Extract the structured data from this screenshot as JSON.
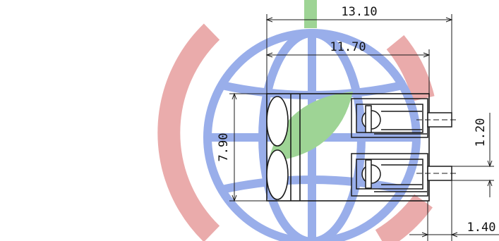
{
  "colors": {
    "watermark_red": "#e8a3a3",
    "watermark_blue": "#8ea6e8",
    "watermark_green": "#94d08a",
    "line": "#1a1a1a"
  },
  "watermark": {
    "kind": "globe-logo"
  },
  "dimensions": {
    "overall_length": "13.10",
    "body_length": "11.70",
    "height": "7.90",
    "pin_pitch": "1.20",
    "pin_offset": "1.40"
  }
}
